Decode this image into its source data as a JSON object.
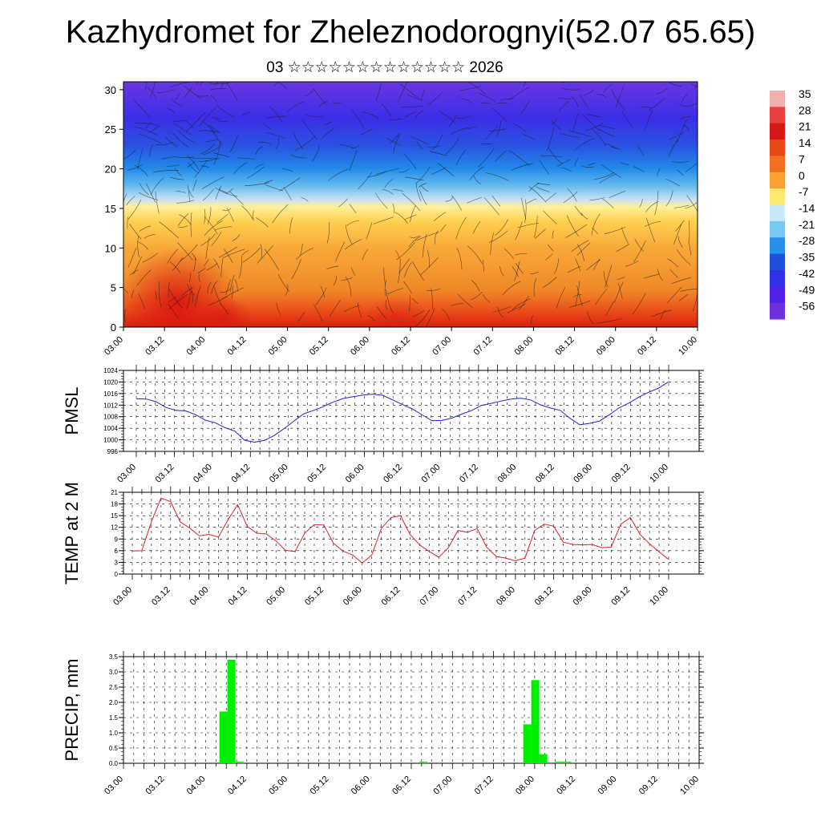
{
  "title": "Kazhydromet for Zheleznodorognyi(52.07 65.65)",
  "subtitle": "03 ☆☆☆☆☆☆☆☆☆☆☆☆☆ 2026",
  "time_labels": [
    "03.00",
    "03.12",
    "04.00",
    "04.12",
    "05.00",
    "05.12",
    "06.00",
    "06.12",
    "07.00",
    "07.12",
    "08.00",
    "08.12",
    "09.00",
    "09.12",
    "10.00"
  ],
  "chart_data": [
    {
      "type": "heatmap",
      "y_ticks": [
        "0",
        "5",
        "10",
        "15",
        "20",
        "25",
        "30"
      ],
      "ylim": [
        0,
        31
      ],
      "colorbar": {
        "labels": [
          "35",
          "28",
          "21",
          "14",
          "7",
          "0",
          "-7",
          "-14",
          "-21",
          "-28",
          "-35",
          "-42",
          "-49",
          "-56"
        ],
        "colors": [
          "#f0b0b0",
          "#e84040",
          "#d81818",
          "#e84818",
          "#f07020",
          "#f8a030",
          "#ffe870",
          "#c8e8f8",
          "#78c8f0",
          "#2890e8",
          "#2050e0",
          "#3030e8",
          "#5020e8",
          "#7030e0"
        ]
      }
    },
    {
      "type": "line",
      "ylabel": "PMSL",
      "y_ticks": [
        "996",
        "1000",
        "1004",
        "1008",
        "1012",
        "1016",
        "1020",
        "1024"
      ],
      "ylim": [
        996,
        1024
      ],
      "color": "#2020d0",
      "values": [
        1014.2,
        1014.1,
        1013.2,
        1011.2,
        1010.2,
        1010.0,
        1008.7,
        1006.8,
        1005.9,
        1004.2,
        1003.0,
        999.8,
        999.2,
        999.8,
        1001.5,
        1003.9,
        1006.5,
        1009.0,
        1010.2,
        1011.5,
        1013.1,
        1014.3,
        1014.9,
        1015.5,
        1015.8,
        1015.4,
        1013.8,
        1012.2,
        1010.7,
        1008.6,
        1006.6,
        1006.7,
        1007.5,
        1008.9,
        1010.1,
        1011.9,
        1012.6,
        1013.4,
        1014.1,
        1014.4,
        1013.8,
        1012.1,
        1011.0,
        1010.2,
        1007.4,
        1005.2,
        1005.7,
        1006.5,
        1008.7,
        1011.1,
        1012.8,
        1014.8,
        1016.5,
        1017.9,
        1020.1
      ]
    },
    {
      "type": "line",
      "ylabel": "TEMP at 2 M",
      "y_ticks": [
        "0",
        "3",
        "6",
        "9",
        "12",
        "15",
        "18",
        "21"
      ],
      "ylim": [
        0,
        21
      ],
      "color": "#e02020",
      "values": [
        5.9,
        6.0,
        13.5,
        19.5,
        18.6,
        13.4,
        11.8,
        9.8,
        10.2,
        9.5,
        14.0,
        17.8,
        12.2,
        10.5,
        10.3,
        8.5,
        6.1,
        5.8,
        10.5,
        12.7,
        12.6,
        7.9,
        5.9,
        4.9,
        2.8,
        4.9,
        11.7,
        14.5,
        15.0,
        10.2,
        7.5,
        5.8,
        4.3,
        6.8,
        11.2,
        10.7,
        11.7,
        6.9,
        4.5,
        4.1,
        3.4,
        4.1,
        11.2,
        12.8,
        12.3,
        8.2,
        7.6,
        7.5,
        7.6,
        6.8,
        6.9,
        12.8,
        14.5,
        10.2,
        7.8,
        5.7,
        3.7
      ]
    },
    {
      "type": "bar",
      "ylabel": "PRECIP, mm",
      "y_ticks": [
        "0.0",
        "0.5",
        "1.0",
        "1.5",
        "2.0",
        "2.5",
        "3.0",
        "3.5"
      ],
      "ylim": [
        0,
        3.5
      ],
      "color": "#00ee00",
      "values": [
        0,
        0,
        0,
        0,
        0,
        0,
        0,
        0,
        0,
        0,
        0,
        0,
        1.7,
        3.4,
        0.05,
        0,
        0,
        0,
        0,
        0,
        0,
        0,
        0,
        0,
        0,
        0,
        0,
        0,
        0,
        0,
        0,
        0,
        0,
        0,
        0,
        0,
        0,
        0.05,
        0,
        0,
        0,
        0,
        0,
        0,
        0,
        0,
        0,
        0,
        0,
        0,
        1.28,
        2.73,
        0.3,
        0,
        0.05,
        0.05,
        0,
        0,
        0,
        0,
        0,
        0,
        0,
        0,
        0,
        0,
        0,
        0,
        0,
        0,
        0,
        0
      ]
    }
  ]
}
